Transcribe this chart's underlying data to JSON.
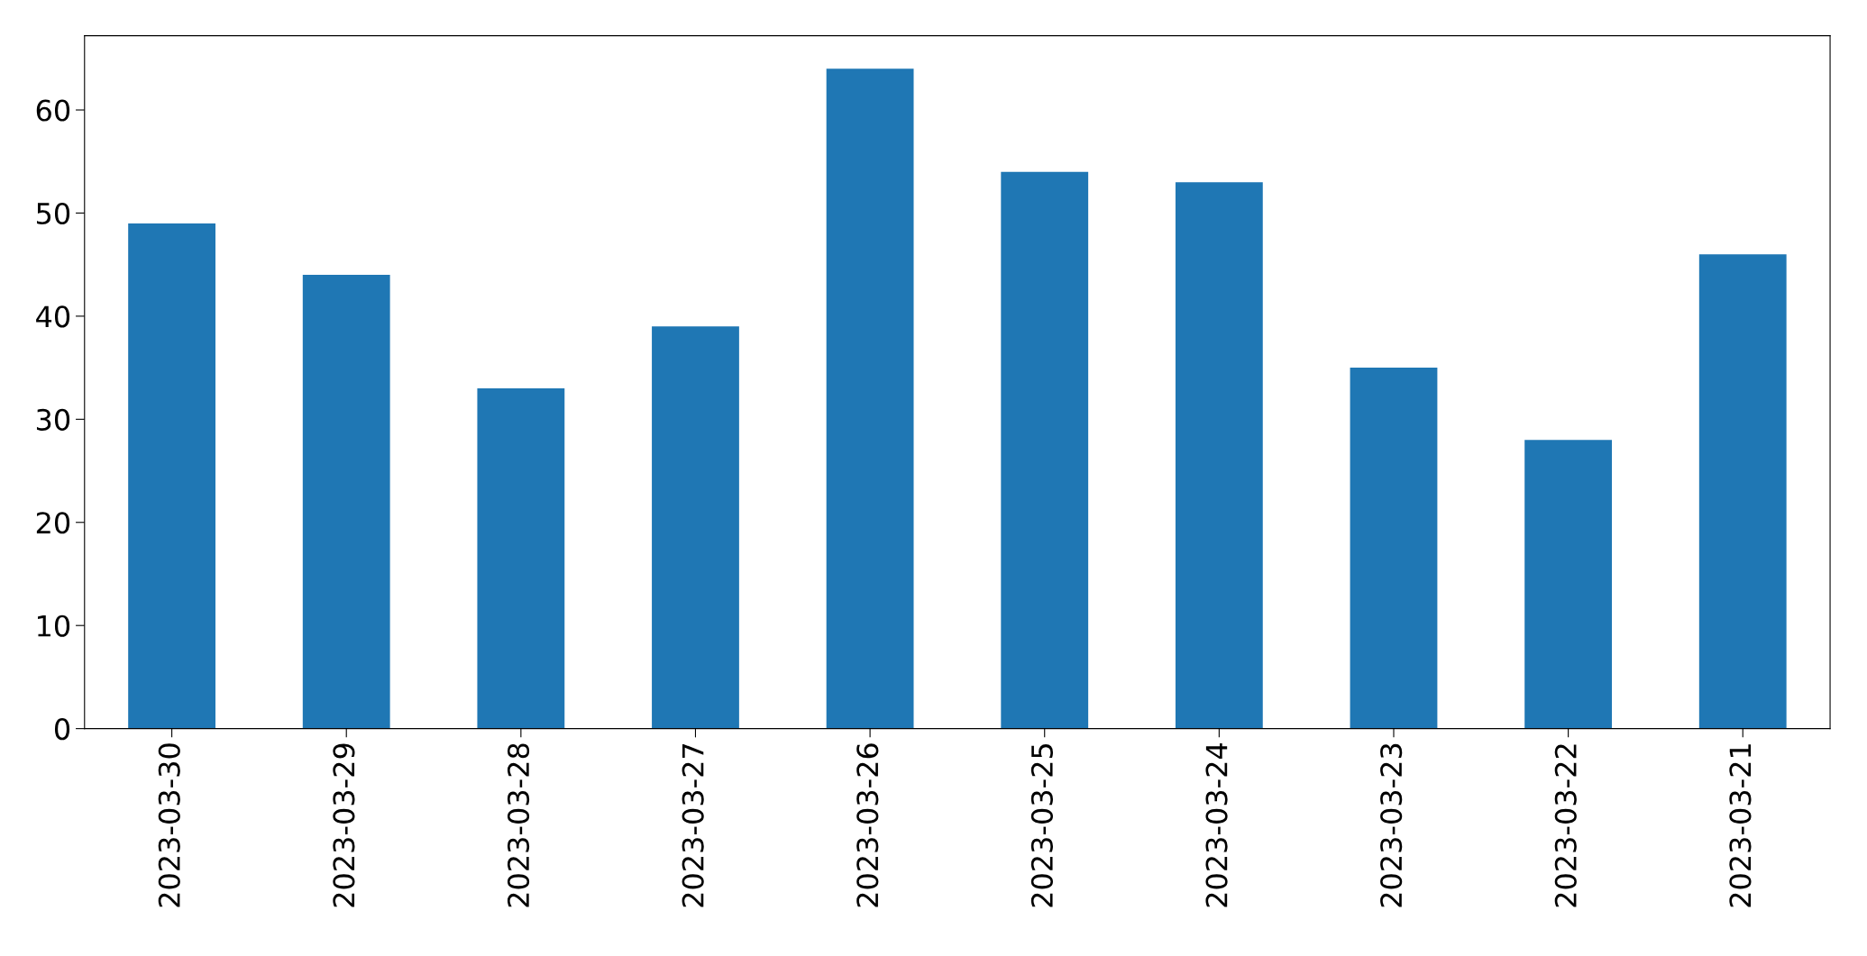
{
  "chart_data": {
    "type": "bar",
    "categories": [
      "2023-03-30",
      "2023-03-29",
      "2023-03-28",
      "2023-03-27",
      "2023-03-26",
      "2023-03-25",
      "2023-03-24",
      "2023-03-23",
      "2023-03-22",
      "2023-03-21"
    ],
    "values": [
      49,
      44,
      33,
      39,
      64,
      54,
      53,
      35,
      28,
      46
    ],
    "color": "#1f77b4",
    "ylim": [
      0,
      67.2
    ],
    "yticks": [
      0,
      10,
      20,
      30,
      40,
      50,
      60
    ],
    "grid": false,
    "legend": false
  }
}
